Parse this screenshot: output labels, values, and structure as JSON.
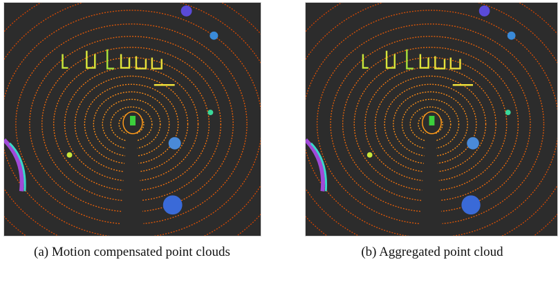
{
  "figures": [
    {
      "caption": "(a) Motion compensated point clouds"
    },
    {
      "caption": "(b) Aggregated point cloud"
    }
  ]
}
